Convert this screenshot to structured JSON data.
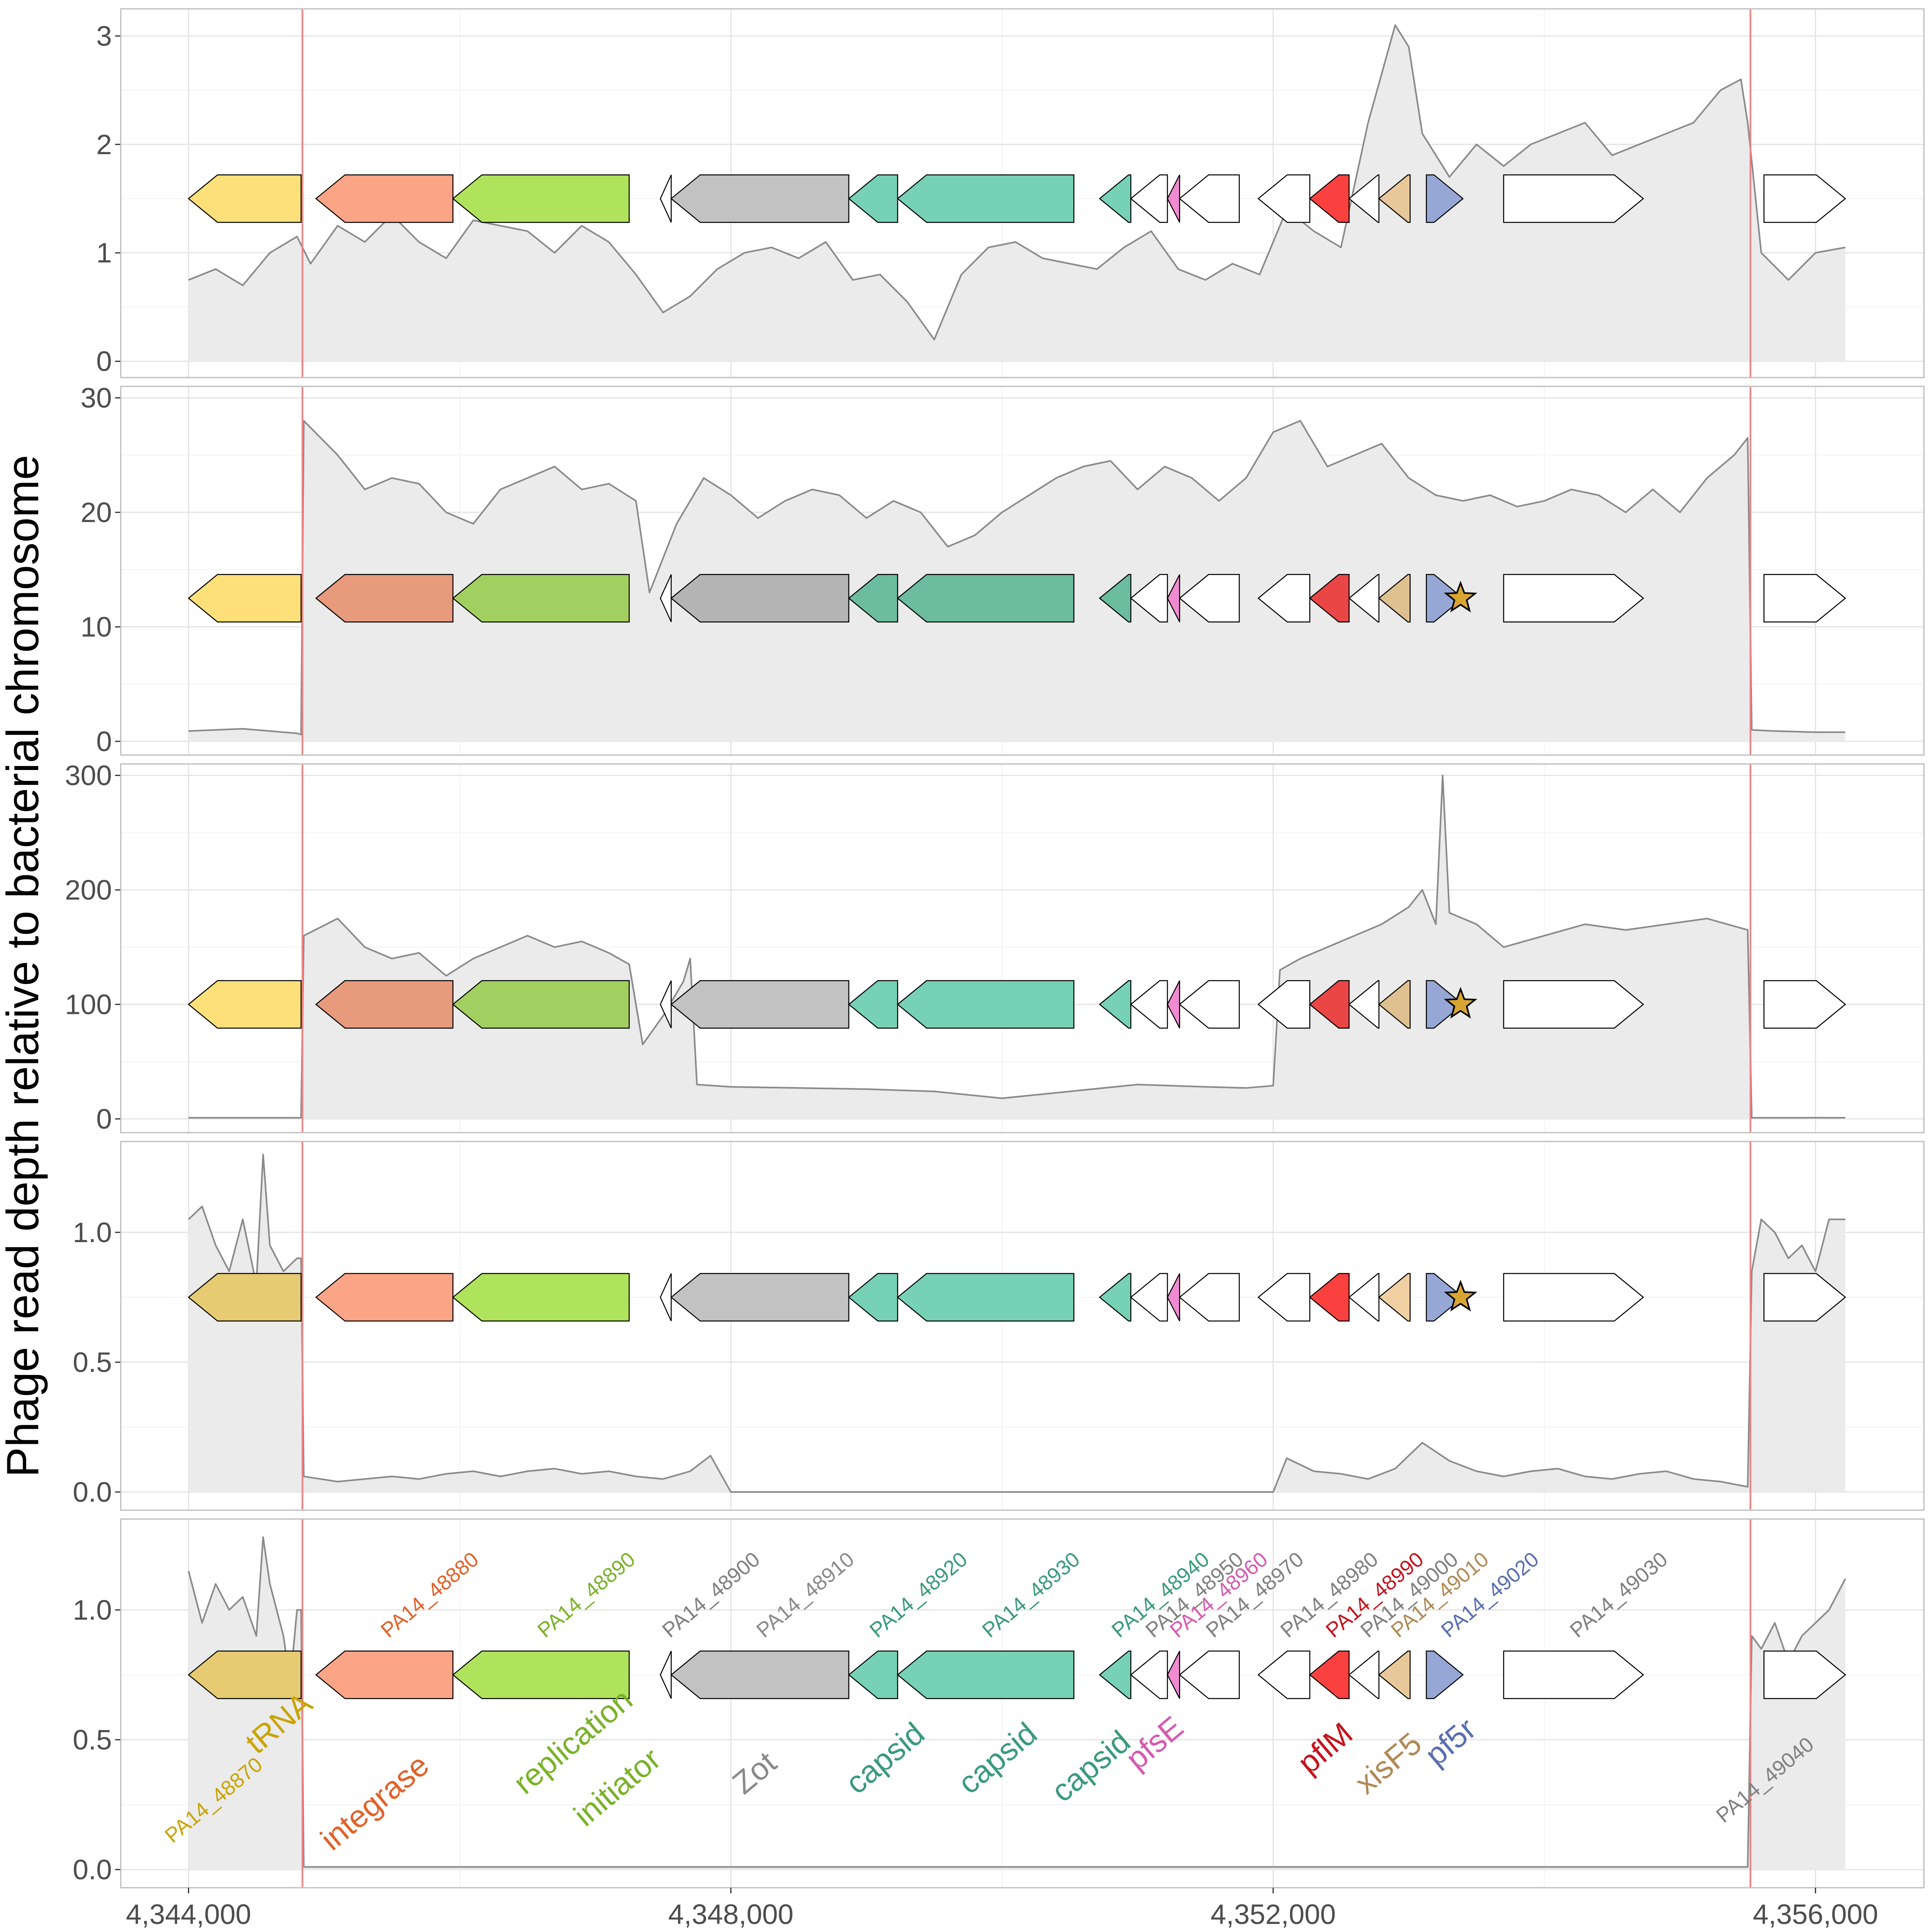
{
  "chart_data": {
    "type": "area",
    "ylabel": "Phage read depth relative to bacterial chromosome",
    "xlim": [
      4343500,
      4356800
    ],
    "x_ticks": [
      4344000,
      4348000,
      4352000,
      4356000
    ],
    "x_tick_labels": [
      "4,344,000",
      "4,348,000",
      "4,352,000",
      "4,356,000"
    ],
    "grid": true,
    "prophage_boundaries": [
      4344840,
      4355520
    ],
    "colors": {
      "area_fill": "#ebebeb",
      "line": "#8a8a8a",
      "boundary": "#f08080",
      "star": "#d9a532"
    },
    "genes": [
      {
        "id": "PA14_48870",
        "start": 4344000,
        "end": 4344830,
        "strand": "-",
        "color": "#fde07a",
        "product": "tRNA",
        "label_color": "#c9a400"
      },
      {
        "id": "PA14_48880",
        "start": 4344940,
        "end": 4345950,
        "strand": "-",
        "color": "#fca586",
        "product": "integrase",
        "label_color": "#e0622a"
      },
      {
        "id": "PA14_48890",
        "start": 4345950,
        "end": 4347250,
        "strand": "-",
        "color": "#b0e35c",
        "product": "replication initiator",
        "label_color": "#7ab228"
      },
      {
        "id": "PA14_48900",
        "start": 4347480,
        "end": 4347560,
        "strand": "-",
        "color": "#ffffff",
        "product": "",
        "label_color": "#808080"
      },
      {
        "id": "PA14_48910",
        "start": 4347560,
        "end": 4348870,
        "strand": "-",
        "color": "#c2c2c2",
        "product": "Zot",
        "label_color": "#8a8a8a"
      },
      {
        "id": "PA14_48920",
        "start": 4348870,
        "end": 4349230,
        "strand": "-",
        "color": "#77d1b5",
        "product": "capsid",
        "label_color": "#3a9a7c"
      },
      {
        "id": "PA14_48930",
        "start": 4349230,
        "end": 4350530,
        "strand": "-",
        "color": "#77d1b5",
        "product": "capsid",
        "label_color": "#3a9a7c"
      },
      {
        "id": "PA14_48940",
        "start": 4350720,
        "end": 4350950,
        "strand": "-",
        "color": "#77d1b5",
        "product": "capsid",
        "label_color": "#3a9a7c"
      },
      {
        "id": "PA14_48950",
        "start": 4350950,
        "end": 4351220,
        "strand": "-",
        "color": "#ffffff",
        "product": "",
        "label_color": "#808080"
      },
      {
        "id": "PA14_48960",
        "start": 4351220,
        "end": 4351310,
        "strand": "-",
        "color": "#f08ad1",
        "product": "pfsE",
        "label_color": "#d65ab0"
      },
      {
        "id": "PA14_48970",
        "start": 4351310,
        "end": 4351750,
        "strand": "-",
        "color": "#ffffff",
        "product": "",
        "label_color": "#808080"
      },
      {
        "id": "PA14_48980",
        "start": 4351890,
        "end": 4352270,
        "strand": "-",
        "color": "#ffffff",
        "product": "",
        "label_color": "#808080"
      },
      {
        "id": "PA14_48990",
        "start": 4352270,
        "end": 4352560,
        "strand": "-",
        "color": "#fb4040",
        "product": "pflM",
        "label_color": "#c4141e"
      },
      {
        "id": "PA14_49000",
        "start": 4352560,
        "end": 4352780,
        "strand": "-",
        "color": "#ffffff",
        "product": "",
        "label_color": "#808080"
      },
      {
        "id": "PA14_49010",
        "start": 4352780,
        "end": 4353010,
        "strand": "-",
        "color": "#e8c89a",
        "product": "xisF5",
        "label_color": "#b08a55"
      },
      {
        "id": "PA14_49020",
        "start": 4353130,
        "end": 4353400,
        "strand": "+",
        "color": "#96a7d6",
        "product": "pf5r",
        "label_color": "#5a6fb0"
      },
      {
        "id": "PA14_49030",
        "start": 4353700,
        "end": 4354730,
        "strand": "+",
        "color": "#ffffff",
        "product": "",
        "label_color": "#808080"
      },
      {
        "id": "PA14_49040",
        "start": 4355620,
        "end": 4356220,
        "strand": "+",
        "color": "#ffffff",
        "product": "",
        "label_color": "#808080"
      }
    ],
    "panels": [
      {
        "ylim": [
          -0.15,
          3.25
        ],
        "yticks": [
          0,
          1,
          2,
          3
        ],
        "ytick_labels": [
          "0",
          "1",
          "2",
          "3"
        ],
        "gene_y": 1.5,
        "star": false,
        "gene_colors": {
          "PA14_48870": "#fde07a",
          "PA14_48880": "#fca586",
          "PA14_48890": "#b0e35c",
          "PA14_48910": "#c2c2c2",
          "PA14_48920": "#77d1b5",
          "PA14_48930": "#77d1b5",
          "PA14_48940": "#77d1b5",
          "PA14_48960": "#f08ad1",
          "PA14_48990": "#fb4040",
          "PA14_49010": "#e8c89a",
          "PA14_49020": "#96a7d6"
        },
        "x": [
          4344000,
          4344200,
          4344400,
          4344600,
          4344800,
          4344900,
          4345100,
          4345300,
          4345500,
          4345700,
          4345900,
          4346100,
          4346300,
          4346500,
          4346700,
          4346900,
          4347100,
          4347300,
          4347500,
          4347700,
          4347900,
          4348100,
          4348300,
          4348500,
          4348700,
          4348900,
          4349100,
          4349300,
          4349500,
          4349700,
          4349900,
          4350100,
          4350300,
          4350500,
          4350700,
          4350900,
          4351100,
          4351300,
          4351500,
          4351700,
          4351900,
          4352100,
          4352300,
          4352500,
          4352700,
          4352900,
          4353000,
          4353100,
          4353300,
          4353500,
          4353700,
          4353900,
          4354100,
          4354300,
          4354500,
          4354700,
          4354900,
          4355100,
          4355300,
          4355450,
          4355500,
          4355600,
          4355800,
          4356000,
          4356220
        ],
        "y": [
          0.75,
          0.85,
          0.7,
          1.0,
          1.15,
          0.9,
          1.25,
          1.1,
          1.35,
          1.1,
          0.95,
          1.3,
          1.25,
          1.2,
          1.0,
          1.25,
          1.1,
          0.8,
          0.45,
          0.6,
          0.85,
          1.0,
          1.05,
          0.95,
          1.1,
          0.75,
          0.8,
          0.55,
          0.2,
          0.8,
          1.05,
          1.1,
          0.95,
          0.9,
          0.85,
          1.05,
          1.2,
          0.85,
          0.75,
          0.9,
          0.8,
          1.4,
          1.2,
          1.05,
          2.2,
          3.1,
          2.9,
          2.1,
          1.7,
          2.0,
          1.8,
          2.0,
          2.1,
          2.2,
          1.9,
          2.0,
          2.1,
          2.2,
          2.5,
          2.6,
          2.2,
          1.0,
          0.75,
          1.0,
          1.05
        ]
      },
      {
        "ylim": [
          -1.2,
          31
        ],
        "yticks": [
          0,
          10,
          20,
          30
        ],
        "ytick_labels": [
          "0",
          "10",
          "20",
          "30"
        ],
        "gene_y": 12.5,
        "star": true,
        "gene_colors": {
          "PA14_48870": "#fde07a",
          "PA14_48880": "#e89a7d",
          "PA14_48890": "#a2d060",
          "PA14_48910": "#b4b4b4",
          "PA14_48920": "#6cbc9f",
          "PA14_48930": "#6cbc9f",
          "PA14_48940": "#6cbc9f",
          "PA14_48960": "#f08ad1",
          "PA14_48990": "#ea4646",
          "PA14_49010": "#dfc090",
          "PA14_49020": "#96a7d6"
        },
        "x": [
          4344000,
          4344400,
          4344800,
          4344830,
          4344850,
          4345100,
          4345300,
          4345500,
          4345700,
          4345900,
          4346100,
          4346300,
          4346500,
          4346700,
          4346900,
          4347100,
          4347300,
          4347400,
          4347600,
          4347800,
          4348000,
          4348200,
          4348400,
          4348600,
          4348800,
          4349000,
          4349200,
          4349400,
          4349600,
          4349800,
          4350000,
          4350200,
          4350400,
          4350600,
          4350800,
          4351000,
          4351200,
          4351400,
          4351600,
          4351800,
          4352000,
          4352200,
          4352400,
          4352600,
          4352800,
          4353000,
          4353200,
          4353400,
          4353600,
          4353800,
          4354000,
          4354200,
          4354400,
          4354600,
          4354800,
          4355000,
          4355200,
          4355400,
          4355500,
          4355530,
          4355700,
          4356000,
          4356220
        ],
        "y": [
          0.9,
          1.1,
          0.7,
          0.6,
          28.0,
          25.0,
          22.0,
          23.0,
          22.5,
          20.0,
          19.0,
          22.0,
          23.0,
          24.0,
          22.0,
          22.5,
          21.0,
          13.0,
          19.0,
          23.0,
          21.5,
          19.5,
          21.0,
          22.0,
          21.5,
          19.5,
          21.0,
          20.0,
          17.0,
          18.0,
          20.0,
          21.5,
          23.0,
          24.0,
          24.5,
          22.0,
          24.0,
          23.0,
          21.0,
          23.0,
          27.0,
          28.0,
          24.0,
          25.0,
          26.0,
          23.0,
          21.5,
          21.0,
          21.5,
          20.5,
          21.0,
          22.0,
          21.5,
          20.0,
          22.0,
          20.0,
          23.0,
          25.0,
          26.5,
          1.0,
          0.9,
          0.8,
          0.8
        ]
      },
      {
        "ylim": [
          -12,
          310
        ],
        "yticks": [
          0,
          100,
          200,
          300
        ],
        "ytick_labels": [
          "0",
          "100",
          "200",
          "300"
        ],
        "gene_y": 100,
        "star": true,
        "gene_colors": {
          "PA14_48870": "#fde07a",
          "PA14_48880": "#e89a7d",
          "PA14_48890": "#a2d060",
          "PA14_48910": "#c2c2c2",
          "PA14_48920": "#77d1b5",
          "PA14_48930": "#77d1b5",
          "PA14_48940": "#77d1b5",
          "PA14_48960": "#f08ad1",
          "PA14_48990": "#ea4646",
          "PA14_49010": "#dfc090",
          "PA14_49020": "#96a7d6"
        },
        "x": [
          4344000,
          4344400,
          4344800,
          4344830,
          4344850,
          4345100,
          4345300,
          4345500,
          4345700,
          4345900,
          4346100,
          4346300,
          4346500,
          4346700,
          4346900,
          4347100,
          4347250,
          4347350,
          4347500,
          4347650,
          4347700,
          4347750,
          4348000,
          4348500,
          4349000,
          4349500,
          4350000,
          4350500,
          4351000,
          4351500,
          4351800,
          4352000,
          4352050,
          4352200,
          4352400,
          4352600,
          4352800,
          4353000,
          4353100,
          4353200,
          4353250,
          4353300,
          4353500,
          4353700,
          4354000,
          4354300,
          4354600,
          4354900,
          4355200,
          4355500,
          4355530,
          4355700,
          4356000,
          4356220
        ],
        "y": [
          1,
          1,
          1,
          1,
          160,
          175,
          150,
          140,
          145,
          125,
          140,
          150,
          160,
          150,
          155,
          145,
          135,
          65,
          90,
          120,
          140,
          30,
          28,
          27,
          26,
          24,
          18,
          24,
          30,
          28,
          27,
          29,
          130,
          140,
          150,
          160,
          170,
          185,
          200,
          170,
          300,
          180,
          170,
          150,
          160,
          170,
          165,
          170,
          175,
          165,
          1,
          1,
          1,
          1
        ]
      },
      {
        "ylim": [
          -0.07,
          1.35
        ],
        "yticks": [
          0.0,
          0.5,
          1.0
        ],
        "ytick_labels": [
          "0.0",
          "0.5",
          "1.0"
        ],
        "gene_y": 0.75,
        "star": true,
        "gene_colors": {
          "PA14_48870": "#e6cb72",
          "PA14_48880": "#fca586",
          "PA14_48890": "#b0e35c",
          "PA14_48910": "#c2c2c2",
          "PA14_48920": "#77d1b5",
          "PA14_48930": "#77d1b5",
          "PA14_48940": "#77d1b5",
          "PA14_48960": "#f08ad1",
          "PA14_48990": "#fb4040",
          "PA14_49010": "#f0d0a2",
          "PA14_49020": "#96a7d6"
        },
        "x": [
          4344000,
          4344100,
          4344200,
          4344300,
          4344400,
          4344500,
          4344550,
          4344600,
          4344700,
          4344800,
          4344830,
          4344850,
          4345100,
          4345300,
          4345500,
          4345700,
          4345900,
          4346100,
          4346300,
          4346500,
          4346700,
          4346900,
          4347100,
          4347300,
          4347500,
          4347700,
          4347850,
          4348000,
          4349000,
          4350000,
          4351000,
          4351900,
          4352000,
          4352100,
          4352300,
          4352500,
          4352700,
          4352900,
          4353100,
          4353300,
          4353500,
          4353700,
          4353900,
          4354100,
          4354300,
          4354500,
          4354700,
          4354900,
          4355100,
          4355300,
          4355500,
          4355530,
          4355600,
          4355700,
          4355800,
          4355900,
          4356000,
          4356100,
          4356220
        ],
        "y": [
          1.05,
          1.1,
          0.95,
          0.85,
          1.05,
          0.8,
          1.3,
          0.95,
          0.85,
          0.9,
          0.9,
          0.06,
          0.04,
          0.05,
          0.06,
          0.05,
          0.07,
          0.08,
          0.06,
          0.08,
          0.09,
          0.07,
          0.08,
          0.06,
          0.05,
          0.08,
          0.14,
          0.0,
          0.0,
          0.0,
          0.0,
          0.0,
          0.0,
          0.13,
          0.08,
          0.07,
          0.05,
          0.09,
          0.19,
          0.12,
          0.08,
          0.06,
          0.08,
          0.09,
          0.06,
          0.05,
          0.07,
          0.08,
          0.05,
          0.04,
          0.02,
          0.85,
          1.05,
          1.0,
          0.9,
          0.95,
          0.85,
          1.05,
          1.05
        ]
      },
      {
        "ylim": [
          -0.07,
          1.35
        ],
        "yticks": [
          0.0,
          0.5,
          1.0
        ],
        "ytick_labels": [
          "0.0",
          "0.5",
          "1.0"
        ],
        "gene_y": 0.75,
        "star": false,
        "show_labels": true,
        "show_xaxis": true,
        "gene_colors": {
          "PA14_48870": "#e6cb72",
          "PA14_48880": "#fca586",
          "PA14_48890": "#b0e35c",
          "PA14_48910": "#c2c2c2",
          "PA14_48920": "#77d1b5",
          "PA14_48930": "#77d1b5",
          "PA14_48940": "#77d1b5",
          "PA14_48960": "#f08ad1",
          "PA14_48990": "#fb4040",
          "PA14_49010": "#e8c89a",
          "PA14_49020": "#96a7d6"
        },
        "x": [
          4344000,
          4344100,
          4344200,
          4344300,
          4344400,
          4344500,
          4344550,
          4344600,
          4344700,
          4344750,
          4344800,
          4344830,
          4344850,
          4345500,
          4346500,
          4347500,
          4348500,
          4349500,
          4350500,
          4351500,
          4352500,
          4353500,
          4354500,
          4355500,
          4355530,
          4355600,
          4355700,
          4355800,
          4355900,
          4356000,
          4356100,
          4356220
        ],
        "y": [
          1.15,
          0.95,
          1.1,
          1.0,
          1.05,
          0.9,
          1.28,
          1.1,
          0.9,
          0.72,
          1.0,
          1.0,
          0.01,
          0.01,
          0.01,
          0.01,
          0.01,
          0.01,
          0.01,
          0.01,
          0.01,
          0.01,
          0.01,
          0.01,
          0.9,
          0.85,
          0.95,
          0.8,
          0.9,
          0.95,
          1.0,
          1.12
        ]
      }
    ]
  }
}
